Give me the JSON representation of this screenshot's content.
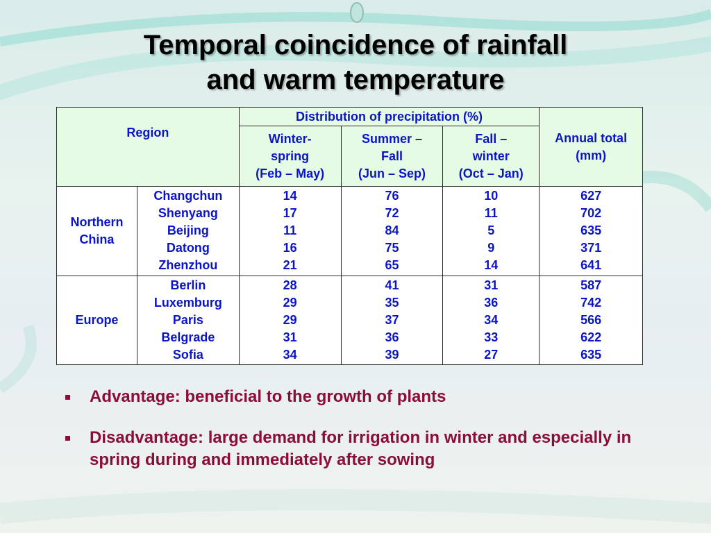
{
  "title": {
    "line1": "Temporal coincidence of rainfall",
    "line2": "and warm temperature"
  },
  "table": {
    "header": {
      "region": "Region",
      "distribution": "Distribution of precipitation (%)",
      "annual": [
        "Annual total",
        "(mm)"
      ],
      "winter_spring": [
        "Winter-",
        "spring",
        "(Feb – May)"
      ],
      "summer_fall": [
        "Summer –",
        "Fall",
        "(Jun – Sep)"
      ],
      "fall_winter": [
        "Fall –",
        "winter",
        "(Oct – Jan)"
      ]
    },
    "groups": [
      {
        "region": [
          "Northern",
          "China"
        ],
        "cities": [
          "Changchun",
          "Shenyang",
          "Beijing",
          "Datong",
          "Zhenzhou"
        ],
        "winter_spring": [
          "14",
          "17",
          "11",
          "16",
          "21"
        ],
        "summer_fall": [
          "76",
          "72",
          "84",
          "75",
          "65"
        ],
        "fall_winter": [
          "10",
          "11",
          "5",
          "9",
          "14"
        ],
        "annual": [
          "627",
          "702",
          "635",
          "371",
          "641"
        ]
      },
      {
        "region": [
          "Europe"
        ],
        "cities": [
          "Berlin",
          "Luxemburg",
          "Paris",
          "Belgrade",
          "Sofia"
        ],
        "winter_spring": [
          "28",
          "29",
          "29",
          "31",
          "34"
        ],
        "summer_fall": [
          "41",
          "35",
          "37",
          "36",
          "39"
        ],
        "fall_winter": [
          "31",
          "36",
          "34",
          "33",
          "27"
        ],
        "annual": [
          "587",
          "742",
          "566",
          "622",
          "635"
        ]
      }
    ]
  },
  "bullets": [
    "Advantage: beneficial to the growth of plants",
    "Disadvantage: large demand for irrigation in winter and especially in spring during and immediately after sowing"
  ],
  "colors": {
    "table_text": "#0a14c8",
    "header_fill": "#e6fbe3",
    "bullet_text": "#8b0d3a"
  }
}
